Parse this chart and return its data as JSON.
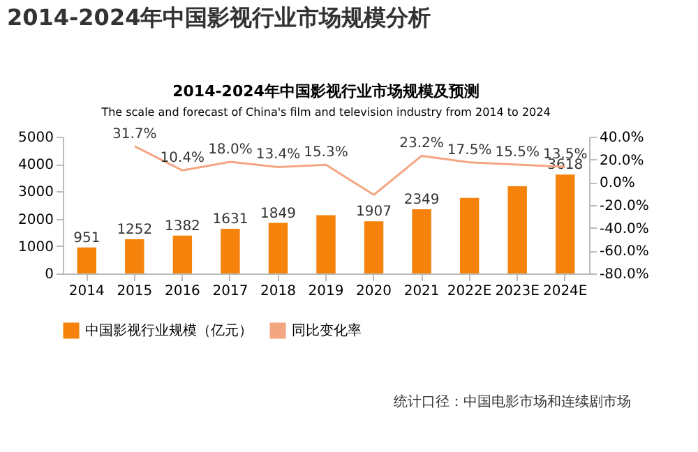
{
  "chart_data": {
    "type": "bar",
    "title": "2014-2024年中国影视行业市场规模及预测",
    "subtitle": "The scale and forecast of China's film and television industry from 2014 to 2024",
    "annotations": [
      "2014-2024年中国影视行业市场规模分析",
      "统计口径：中国电影市场和连续剧市场"
    ],
    "categories": [
      "2014",
      "2015",
      "2016",
      "2017",
      "2018",
      "2019",
      "2020",
      "2021",
      "2022E",
      "2023E",
      "2024E"
    ],
    "series": [
      {
        "name": "中国影视行业规模（亿元）",
        "color": "#f5820a",
        "values": [
          951,
          1252,
          1382,
          1631,
          1849,
          2130,
          1907,
          2349,
          2760,
          3190,
          3618
        ],
        "value_labels": [
          "951",
          "1252",
          "1382",
          "1631",
          "1849",
          null,
          "1907",
          "2349",
          null,
          null,
          "3618"
        ]
      },
      {
        "name": "同比变化率",
        "type": "line",
        "axis": "y2",
        "color": "#f4a582",
        "values": [
          null,
          31.7,
          10.4,
          18.0,
          13.4,
          15.3,
          -11,
          23.2,
          17.5,
          15.5,
          13.5
        ],
        "value_labels": [
          null,
          "31.7%",
          "10.4%",
          "18.0%",
          "13.4%",
          "15.3%",
          null,
          "23.2%",
          "17.5%",
          "15.5%",
          "13.5%"
        ]
      }
    ],
    "ylim": [
      0,
      5000
    ],
    "yticks": [
      0,
      1000,
      2000,
      3000,
      4000,
      5000
    ],
    "y2lim": [
      -80,
      40
    ],
    "y2ticks": [
      {
        "value": -80,
        "label": "-80.0%"
      },
      {
        "value": -60,
        "label": "-60.0%"
      },
      {
        "value": -40,
        "label": "-40.0%"
      },
      {
        "value": -20,
        "label": "-20.0%"
      },
      {
        "value": 0,
        "label": "0.0%"
      },
      {
        "value": 20,
        "label": "20.0%"
      },
      {
        "value": 40,
        "label": "40.0%"
      }
    ],
    "legend": "bottom",
    "grid": false
  }
}
